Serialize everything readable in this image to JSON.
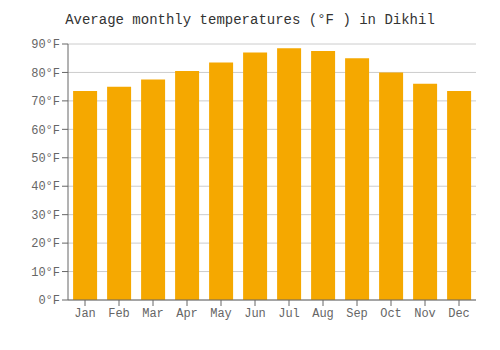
{
  "chart_data": {
    "type": "bar",
    "title": "Average monthly temperatures (°F ) in Dikhil",
    "categories": [
      "Jan",
      "Feb",
      "Mar",
      "Apr",
      "May",
      "Jun",
      "Jul",
      "Aug",
      "Sep",
      "Oct",
      "Nov",
      "Dec"
    ],
    "values": [
      73.5,
      75.0,
      77.5,
      80.5,
      83.5,
      87.0,
      88.5,
      87.5,
      85.0,
      80.0,
      76.0,
      73.5
    ],
    "color": "#F5A800",
    "ylim": [
      0,
      90
    ],
    "yticks": [
      {
        "value": 0,
        "label": "0°F"
      },
      {
        "value": 10,
        "label": "10°F"
      },
      {
        "value": 20,
        "label": "20°F"
      },
      {
        "value": 30,
        "label": "30°F"
      },
      {
        "value": 40,
        "label": "40°F"
      },
      {
        "value": 50,
        "label": "50°F"
      },
      {
        "value": 60,
        "label": "60°F"
      },
      {
        "value": 70,
        "label": "70°F"
      },
      {
        "value": 80,
        "label": "80°F"
      },
      {
        "value": 90,
        "label": "90°F"
      }
    ],
    "grid": true
  }
}
